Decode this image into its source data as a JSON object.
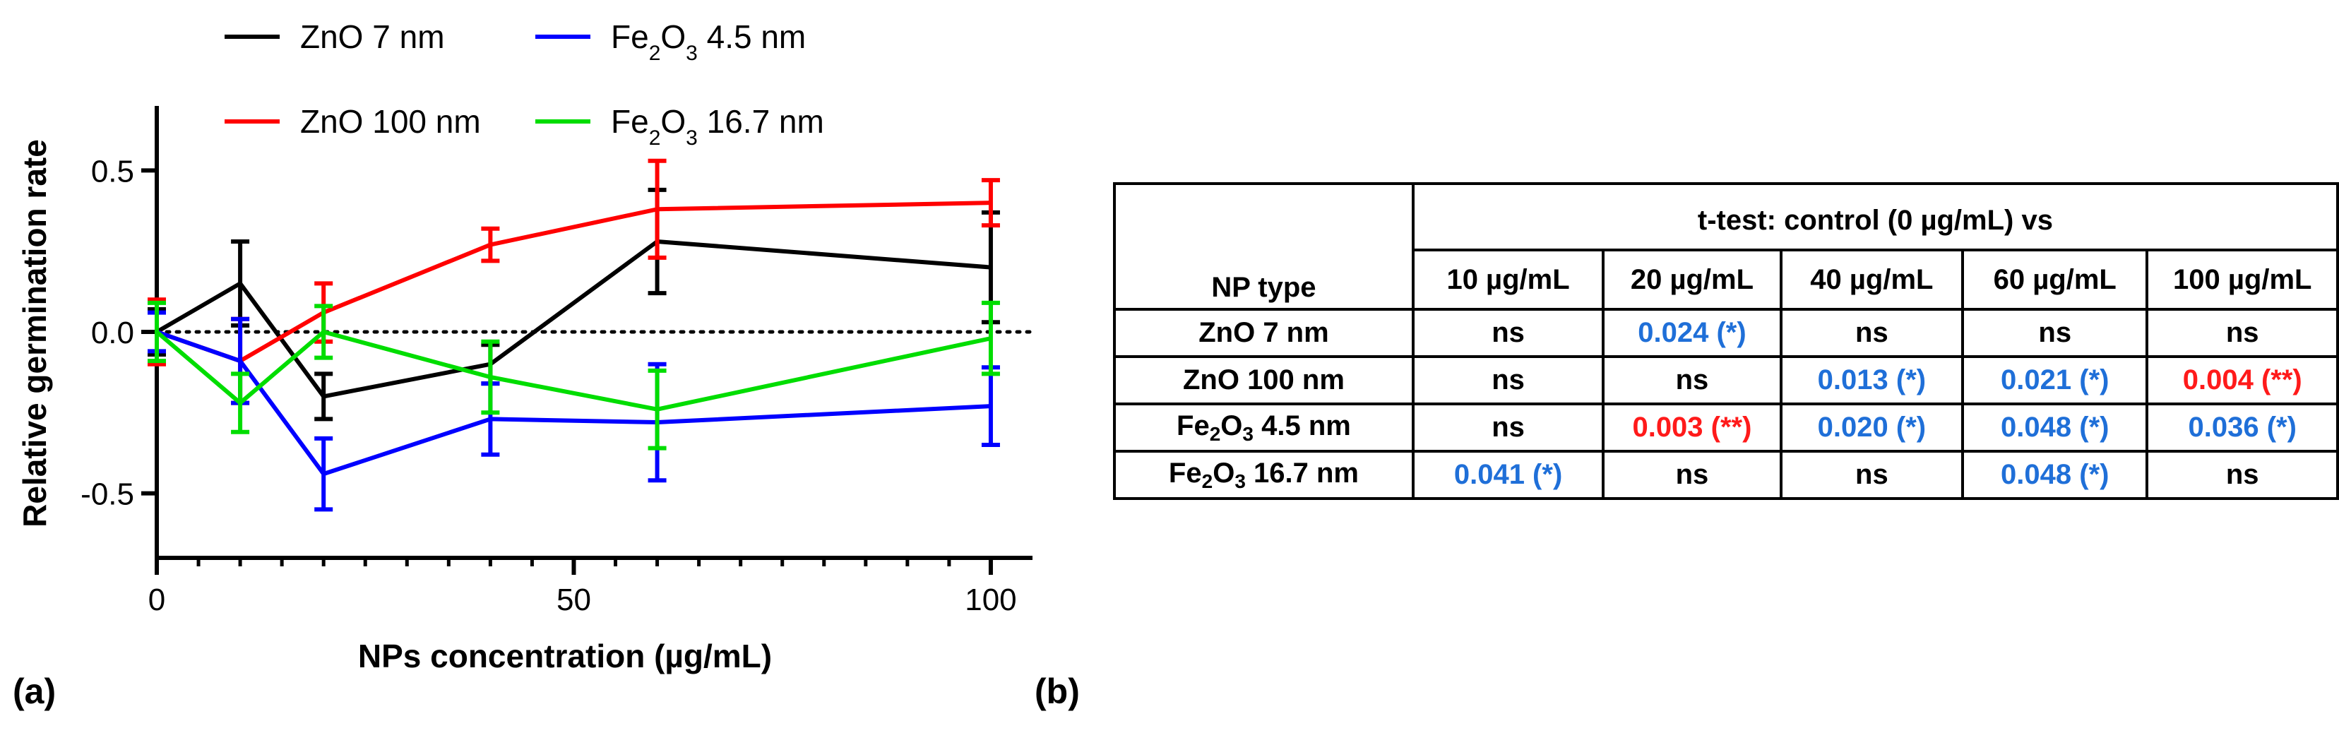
{
  "panel_a_label": "(a)",
  "panel_b_label": "(b)",
  "chart_data": {
    "type": "line",
    "title": "",
    "xlabel": "NPs concentration (µg/mL)",
    "ylabel": "Relative germination rate",
    "xlim": [
      0,
      105
    ],
    "ylim": [
      -0.7,
      0.7
    ],
    "xticks": [
      0,
      50,
      100
    ],
    "xtick_labels": [
      "0",
      "50",
      "100"
    ],
    "yticks": [
      -0.5,
      0.0,
      0.5
    ],
    "ytick_labels": [
      "-0.5",
      "0.0",
      "0.5"
    ],
    "reference_line": 0,
    "x": [
      0,
      10,
      20,
      40,
      60,
      100
    ],
    "series": [
      {
        "name": "ZnO 7 nm",
        "legend_parts": [
          "ZnO 7 nm"
        ],
        "color": "#000000",
        "values": [
          0.0,
          0.15,
          -0.2,
          -0.1,
          0.28,
          0.2
        ],
        "errors": [
          0.07,
          0.13,
          0.07,
          0.06,
          0.16,
          0.17
        ]
      },
      {
        "name": "ZnO 100 nm",
        "legend_parts": [
          "ZnO 100 nm"
        ],
        "color": "#ff0000",
        "values": [
          0.0,
          -0.09,
          0.06,
          0.27,
          0.38,
          0.4
        ],
        "errors": [
          0.1,
          0.13,
          0.09,
          0.05,
          0.15,
          0.07
        ]
      },
      {
        "name": "Fe2O3 4.5 nm",
        "legend_parts": [
          "Fe",
          "2",
          "O",
          "3",
          " 4.5 nm"
        ],
        "color": "#0000ff",
        "values": [
          0.0,
          -0.09,
          -0.44,
          -0.27,
          -0.28,
          -0.23
        ],
        "errors": [
          0.06,
          0.13,
          0.11,
          0.11,
          0.18,
          0.12
        ]
      },
      {
        "name": "Fe2O3 16.7 nm",
        "legend_parts": [
          "Fe",
          "2",
          "O",
          "3",
          " 16.7 nm"
        ],
        "color": "#00dd00",
        "values": [
          0.0,
          -0.22,
          0.0,
          -0.14,
          -0.24,
          -0.02
        ],
        "errors": [
          0.09,
          0.09,
          0.08,
          0.11,
          0.12,
          0.11
        ]
      }
    ]
  },
  "table": {
    "header_title": "t-test: control (0 µg/mL) vs",
    "np_type_header": "NP type",
    "columns": [
      "10 µg/mL",
      "20 µg/mL",
      "40 µg/mL",
      "60 µg/mL",
      "100 µg/mL"
    ],
    "rows": [
      {
        "label": "ZnO 7 nm",
        "label_parts": [
          "ZnO 7 nm"
        ],
        "cells": [
          {
            "text": "ns",
            "color": "ns"
          },
          {
            "text": "0.024 (*)",
            "color": "blue"
          },
          {
            "text": "ns",
            "color": "ns"
          },
          {
            "text": "ns",
            "color": "ns"
          },
          {
            "text": "ns",
            "color": "ns"
          }
        ]
      },
      {
        "label": "ZnO 100 nm",
        "label_parts": [
          "ZnO 100 nm"
        ],
        "cells": [
          {
            "text": "ns",
            "color": "ns"
          },
          {
            "text": "ns",
            "color": "ns"
          },
          {
            "text": "0.013 (*)",
            "color": "blue"
          },
          {
            "text": "0.021 (*)",
            "color": "blue"
          },
          {
            "text": "0.004 (**)",
            "color": "red"
          }
        ]
      },
      {
        "label": "Fe2O3 4.5 nm",
        "label_parts": [
          "Fe",
          "2",
          "O",
          "3",
          " 4.5 nm"
        ],
        "cells": [
          {
            "text": "ns",
            "color": "ns"
          },
          {
            "text": "0.003 (**)",
            "color": "red"
          },
          {
            "text": "0.020 (*)",
            "color": "blue"
          },
          {
            "text": "0.048 (*)",
            "color": "blue"
          },
          {
            "text": "0.036 (*)",
            "color": "blue"
          }
        ]
      },
      {
        "label": "Fe2O3 16.7 nm",
        "label_parts": [
          "Fe",
          "2",
          "O",
          "3",
          " 16.7 nm"
        ],
        "cells": [
          {
            "text": "0.041 (*)",
            "color": "blue"
          },
          {
            "text": "ns",
            "color": "ns"
          },
          {
            "text": "ns",
            "color": "ns"
          },
          {
            "text": "0.048 (*)",
            "color": "blue"
          },
          {
            "text": "ns",
            "color": "ns"
          }
        ]
      }
    ]
  }
}
